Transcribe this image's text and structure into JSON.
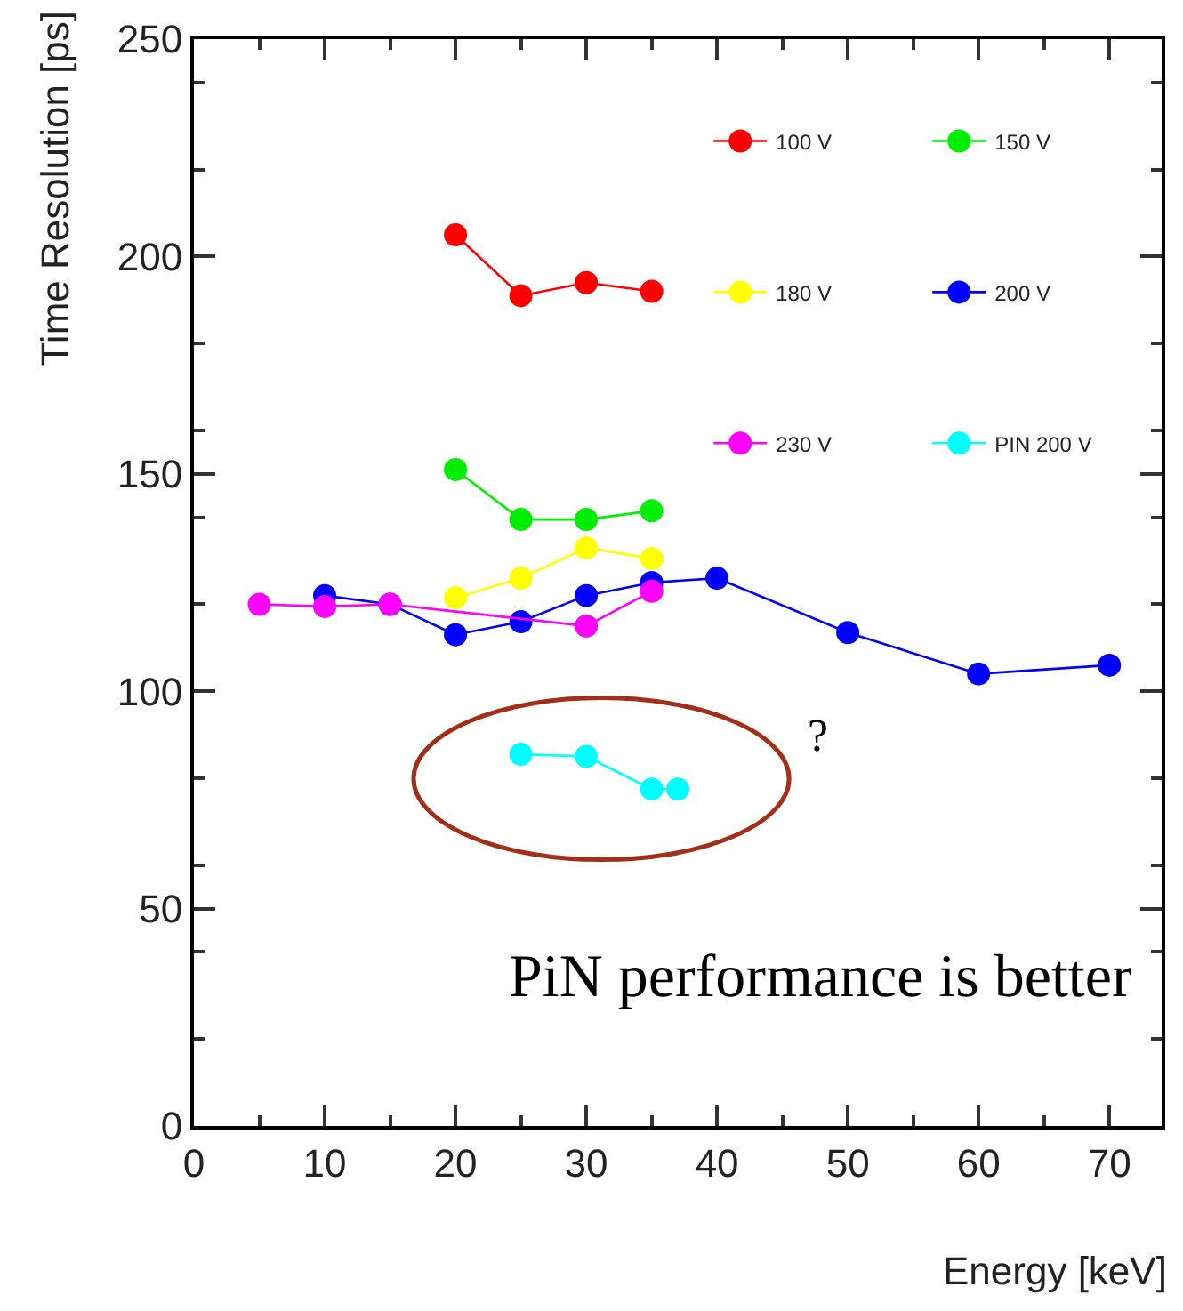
{
  "chart_data": {
    "type": "line",
    "xlabel": "Energy [keV]",
    "ylabel": "Time Resolution [ps]",
    "xlim": [
      0,
      74
    ],
    "xticks": [
      0,
      10,
      20,
      30,
      40,
      50,
      60,
      70
    ],
    "ylim": [
      0,
      250
    ],
    "yticks": [
      0,
      50,
      100,
      150,
      200,
      250
    ],
    "legend": "top right",
    "marker": "circle",
    "line_style": "solid",
    "series": [
      {
        "name": "100 V",
        "color": "#ff0000",
        "x": [
          20,
          25,
          30,
          35
        ],
        "values": [
          205,
          191,
          194,
          192
        ]
      },
      {
        "name": "150 V",
        "color": "#00ee00",
        "x": [
          20,
          25,
          30,
          35
        ],
        "values": [
          151,
          139.5,
          139.5,
          141.5
        ]
      },
      {
        "name": "180 V",
        "color": "#ffff00",
        "x": [
          20,
          25,
          30,
          35
        ],
        "values": [
          121.5,
          126,
          133,
          130.5
        ]
      },
      {
        "name": "200 V",
        "color": "#0000ff",
        "x": [
          10,
          15,
          20,
          25,
          30,
          35,
          40,
          50,
          60,
          70
        ],
        "values": [
          122,
          120,
          113,
          116,
          122,
          125,
          126,
          113.5,
          104,
          106
        ]
      },
      {
        "name": "230 V",
        "color": "#ff00ff",
        "x": [
          5,
          10,
          15,
          30,
          35
        ],
        "values": [
          120,
          119.5,
          120,
          115,
          123
        ]
      },
      {
        "name": "PIN 200 V",
        "color": "#00ffff",
        "x": [
          25,
          30,
          35,
          37
        ],
        "values": [
          85.5,
          85,
          77.5,
          77.5
        ]
      }
    ],
    "annotations": [
      "?",
      "PiN performance is better"
    ]
  }
}
